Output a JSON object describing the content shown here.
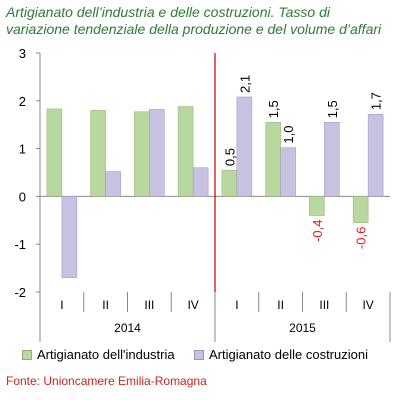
{
  "title_line1": "Artigianato dell’industria e delle costruzioni. Tasso di",
  "title_line2": "variazione tendenziale della produzione e del volume d’affari",
  "source": "Fonte: Unioncamere Emilia-Romagna",
  "chart_data": {
    "type": "bar",
    "categories": [
      "I",
      "II",
      "III",
      "IV",
      "I",
      "II",
      "III",
      "IV"
    ],
    "year_groups": [
      {
        "label": "2014",
        "start": 0,
        "end": 3
      },
      {
        "label": "2015",
        "start": 4,
        "end": 7
      }
    ],
    "series": [
      {
        "name": "Artigianato dell'industria",
        "color": "#b8d8a0",
        "border": "#8fb077",
        "values": [
          1.83,
          1.8,
          1.77,
          1.88,
          0.55,
          1.55,
          -0.4,
          -0.55
        ]
      },
      {
        "name": "Artigianato delle costruzioni",
        "color": "#c9c1e1",
        "border": "#9c93bd",
        "values": [
          -1.7,
          0.52,
          1.82,
          0.6,
          2.08,
          1.02,
          1.55,
          1.72
        ]
      }
    ],
    "data_labels": [
      {
        "category_index": 4,
        "series_index": 0,
        "text": "0,5",
        "color": "#000000"
      },
      {
        "category_index": 4,
        "series_index": 1,
        "text": "2,1",
        "color": "#000000"
      },
      {
        "category_index": 5,
        "series_index": 0,
        "text": "1,5",
        "color": "#000000"
      },
      {
        "category_index": 5,
        "series_index": 1,
        "text": "1,0",
        "color": "#000000"
      },
      {
        "category_index": 6,
        "series_index": 0,
        "text": "-0,4",
        "color": "#e02020"
      },
      {
        "category_index": 6,
        "series_index": 1,
        "text": "1,5",
        "color": "#000000"
      },
      {
        "category_index": 7,
        "series_index": 0,
        "text": "-0,6",
        "color": "#e02020"
      },
      {
        "category_index": 7,
        "series_index": 1,
        "text": "1,7",
        "color": "#000000"
      }
    ],
    "ylim": [
      -2,
      3
    ],
    "yticks": [
      -2,
      -1,
      0,
      1,
      2,
      3
    ],
    "grid": false,
    "divider_color": "#c00000",
    "legend_position": "bottom"
  }
}
